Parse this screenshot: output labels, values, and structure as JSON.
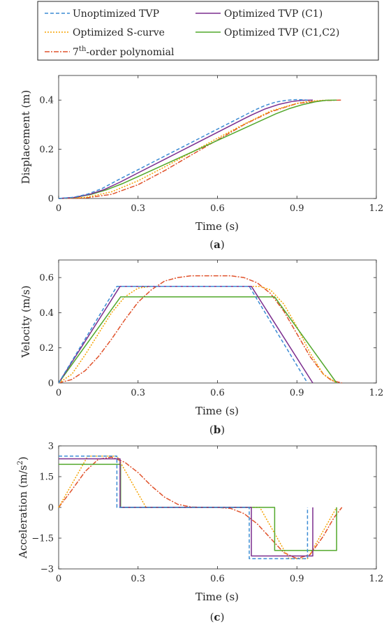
{
  "legend": {
    "items": [
      {
        "label": "Unoptimized TVP",
        "color": "#3A8BD4",
        "dash": "5,3"
      },
      {
        "label": "Optimized TVP (C1)",
        "color": "#7B2D8E",
        "dash": ""
      },
      {
        "label": "Optimized S-curve",
        "color": "#F5A300",
        "dash": "2,2"
      },
      {
        "label": "Optimized TVP (C1,C2)",
        "color": "#52A82B",
        "dash": ""
      },
      {
        "label_main": "7",
        "label_sup": "th",
        "label_rest": "-order polynomial",
        "color": "#E0522B",
        "dash": "7,2,2,2"
      }
    ]
  },
  "chart_data": [
    {
      "id": "a",
      "type": "line",
      "caption_pre": "(",
      "caption_letter": "a",
      "caption_post": ")",
      "xlabel": "Time (s)",
      "ylabel": "Displacement (m)",
      "xlim": [
        0,
        1.2
      ],
      "ylim": [
        0,
        0.5
      ],
      "xticks": [
        0,
        0.3,
        0.6,
        0.9,
        1.2
      ],
      "xtick_labels": [
        "0",
        "0.3",
        "0.6",
        "0.9",
        "1.2"
      ],
      "yticks": [
        0,
        0.2,
        0.4
      ],
      "ytick_labels": [
        "0",
        "0.2",
        "0.4"
      ],
      "series": [
        {
          "name": "Unoptimized TVP",
          "x": [
            0,
            0.055,
            0.11,
            0.165,
            0.22,
            0.3,
            0.4,
            0.5,
            0.6,
            0.7,
            0.74,
            0.78,
            0.82,
            0.86,
            0.9,
            0.94
          ],
          "y": [
            0,
            0.0046,
            0.018,
            0.041,
            0.073,
            0.117,
            0.172,
            0.227,
            0.282,
            0.337,
            0.359,
            0.378,
            0.392,
            0.399,
            0.402,
            0.4
          ]
        },
        {
          "name": "Optimized TVP (C1)",
          "x": [
            0,
            0.058,
            0.116,
            0.174,
            0.232,
            0.3,
            0.4,
            0.5,
            0.6,
            0.7,
            0.73,
            0.78,
            0.83,
            0.88,
            0.92,
            0.96
          ],
          "y": [
            0,
            0.0042,
            0.0166,
            0.037,
            0.0664,
            0.104,
            0.159,
            0.214,
            0.269,
            0.324,
            0.34,
            0.364,
            0.382,
            0.394,
            0.399,
            0.4
          ]
        },
        {
          "name": "Optimized S-curve",
          "x": [
            0,
            0.1,
            0.2,
            0.3,
            0.4,
            0.5,
            0.6,
            0.7,
            0.8,
            0.9,
            0.95,
            1.0,
            1.05
          ],
          "y": [
            0,
            0.004,
            0.027,
            0.072,
            0.128,
            0.186,
            0.245,
            0.302,
            0.355,
            0.387,
            0.396,
            0.399,
            0.4
          ]
        },
        {
          "name": "Optimized TVP (C1,C2)",
          "x": [
            0,
            0.06,
            0.12,
            0.18,
            0.24,
            0.3,
            0.4,
            0.5,
            0.6,
            0.7,
            0.82,
            0.87,
            0.92,
            0.97,
            1.01,
            1.05
          ],
          "y": [
            0,
            0.004,
            0.016,
            0.035,
            0.06,
            0.089,
            0.138,
            0.187,
            0.236,
            0.285,
            0.344,
            0.365,
            0.381,
            0.393,
            0.399,
            0.4
          ]
        },
        {
          "name": "7th-order polynomial",
          "x": [
            0,
            0.1,
            0.2,
            0.3,
            0.4,
            0.5,
            0.6,
            0.7,
            0.8,
            0.9,
            1.0,
            1.07
          ],
          "y": [
            0,
            0.002,
            0.017,
            0.056,
            0.113,
            0.176,
            0.238,
            0.3,
            0.352,
            0.386,
            0.398,
            0.4
          ]
        }
      ]
    },
    {
      "id": "b",
      "type": "line",
      "caption_pre": "(",
      "caption_letter": "b",
      "caption_post": ")",
      "xlabel": "Time (s)",
      "ylabel": "Velocity (m/s)",
      "xlim": [
        0,
        1.2
      ],
      "ylim": [
        0,
        0.7
      ],
      "xticks": [
        0,
        0.3,
        0.6,
        0.9,
        1.2
      ],
      "xtick_labels": [
        "0",
        "0.3",
        "0.6",
        "0.9",
        "1.2"
      ],
      "yticks": [
        0,
        0.2,
        0.4,
        0.6
      ],
      "ytick_labels": [
        "0",
        "0.2",
        "0.4",
        "0.6"
      ],
      "series": [
        {
          "name": "Unoptimized TVP",
          "x": [
            0,
            0.22,
            0.72,
            0.94
          ],
          "y": [
            0,
            0.55,
            0.55,
            0
          ]
        },
        {
          "name": "Optimized TVP (C1)",
          "x": [
            0,
            0.232,
            0.728,
            0.96
          ],
          "y": [
            0,
            0.55,
            0.55,
            0
          ]
        },
        {
          "name": "Optimized S-curve",
          "x": [
            0,
            0.05,
            0.1,
            0.15,
            0.2,
            0.25,
            0.3,
            0.35,
            0.76,
            0.8,
            0.85,
            0.9,
            0.95,
            1.0,
            1.05
          ],
          "y": [
            0,
            0.05,
            0.16,
            0.28,
            0.4,
            0.49,
            0.54,
            0.55,
            0.55,
            0.53,
            0.45,
            0.32,
            0.17,
            0.05,
            0
          ]
        },
        {
          "name": "Optimized TVP (C1,C2)",
          "x": [
            0,
            0.234,
            0.816,
            1.05
          ],
          "y": [
            0,
            0.49,
            0.49,
            0
          ]
        },
        {
          "name": "7th-order polynomial",
          "x": [
            0,
            0.05,
            0.1,
            0.15,
            0.2,
            0.25,
            0.3,
            0.35,
            0.4,
            0.45,
            0.5,
            0.55,
            0.6,
            0.65,
            0.7,
            0.75,
            0.8,
            0.85,
            0.9,
            0.95,
            1.0,
            1.03,
            1.07
          ],
          "y": [
            0,
            0.02,
            0.07,
            0.15,
            0.25,
            0.36,
            0.46,
            0.53,
            0.58,
            0.6,
            0.61,
            0.61,
            0.61,
            0.61,
            0.6,
            0.57,
            0.51,
            0.41,
            0.28,
            0.15,
            0.05,
            0.015,
            0
          ]
        }
      ]
    },
    {
      "id": "c",
      "type": "line",
      "caption_pre": "(",
      "caption_letter": "c",
      "caption_post": ")",
      "xlabel": "Time (s)",
      "ylabel_main": "Acceleration (m/s",
      "ylabel_sup": "2",
      "ylabel_end": ")",
      "xlim": [
        0,
        1.2
      ],
      "ylim": [
        -3,
        3
      ],
      "xticks": [
        0,
        0.3,
        0.6,
        0.9,
        1.2
      ],
      "xtick_labels": [
        "0",
        "0.3",
        "0.6",
        "0.9",
        "1.2"
      ],
      "yticks": [
        -3,
        -1.5,
        0,
        1.5,
        3
      ],
      "ytick_labels": [
        "−3",
        "−1.5",
        "0",
        "1.5",
        "3"
      ],
      "series": [
        {
          "name": "Unoptimized TVP",
          "x": [
            0,
            0.22,
            0.22,
            0.72,
            0.72,
            0.94,
            0.94
          ],
          "y": [
            2.5,
            2.5,
            0,
            0,
            -2.5,
            -2.5,
            0
          ]
        },
        {
          "name": "Optimized TVP (C1)",
          "x": [
            0,
            0.232,
            0.232,
            0.728,
            0.728,
            0.96,
            0.96
          ],
          "y": [
            2.37,
            2.37,
            0,
            0,
            -2.37,
            -2.37,
            0
          ]
        },
        {
          "name": "Optimized S-curve",
          "x": [
            0,
            0.11,
            0.22,
            0.33,
            0.76,
            0.87,
            0.94,
            1.05
          ],
          "y": [
            0,
            2.5,
            2.5,
            0,
            0,
            -2.5,
            -2.5,
            0
          ]
        },
        {
          "name": "Optimized TVP (C1,C2)",
          "x": [
            0,
            0.234,
            0.234,
            0.816,
            0.816,
            1.05,
            1.05
          ],
          "y": [
            2.1,
            2.1,
            0,
            0,
            -2.1,
            -2.1,
            0
          ]
        },
        {
          "name": "7th-order polynomial",
          "x": [
            0,
            0.05,
            0.1,
            0.15,
            0.2,
            0.25,
            0.3,
            0.35,
            0.4,
            0.45,
            0.5,
            0.55,
            0.6,
            0.65,
            0.7,
            0.75,
            0.8,
            0.85,
            0.9,
            0.95,
            1.0,
            1.04,
            1.07
          ],
          "y": [
            0,
            0.85,
            1.75,
            2.35,
            2.45,
            2.2,
            1.7,
            1.05,
            0.5,
            0.15,
            0.02,
            0,
            0,
            -0.05,
            -0.3,
            -0.8,
            -1.5,
            -2.2,
            -2.5,
            -2.3,
            -1.4,
            -0.5,
            0
          ]
        }
      ]
    }
  ]
}
